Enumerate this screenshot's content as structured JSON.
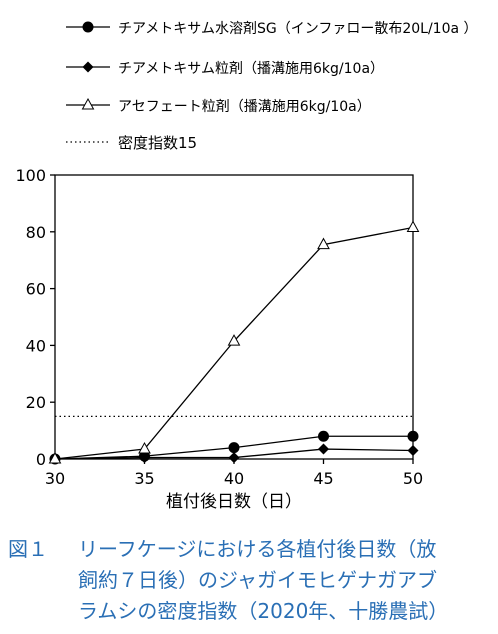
{
  "chart_data": {
    "type": "line",
    "x": [
      30,
      35,
      40,
      45,
      50
    ],
    "xlabel": "植付後日数（日）",
    "ylabel": "",
    "xlim": [
      30,
      50
    ],
    "ylim": [
      0,
      100
    ],
    "xticks": [
      "30",
      "35",
      "40",
      "45",
      "50"
    ],
    "yticks": [
      "0",
      "20",
      "40",
      "60",
      "80",
      "100"
    ],
    "grid": false,
    "legend_position": "top",
    "series": [
      {
        "name": "チアメトキサム水溶剤SG（インファロー散布20L/10a ）",
        "marker": "circle",
        "values": [
          0,
          1,
          4,
          8,
          8
        ]
      },
      {
        "name": "チアメトキサム粒剤（播溝施用6kg/10a）",
        "marker": "diamond",
        "values": [
          0,
          0.5,
          0.5,
          3.5,
          3
        ]
      },
      {
        "name": "アセフェート粒剤（播溝施用6kg/10a）",
        "marker": "triangle",
        "values": [
          0,
          3.5,
          41.5,
          75.5,
          81.5
        ]
      }
    ],
    "reference_line": {
      "name": "密度指数15",
      "value": 15,
      "style": "dotted"
    }
  },
  "caption": {
    "number": "図１",
    "lines": [
      "リーフケージにおける各植付後日数（放",
      "飼約７日後）のジャガイモヒゲナガアブ",
      "ラムシの密度指数（2020年、十勝農試）"
    ]
  }
}
